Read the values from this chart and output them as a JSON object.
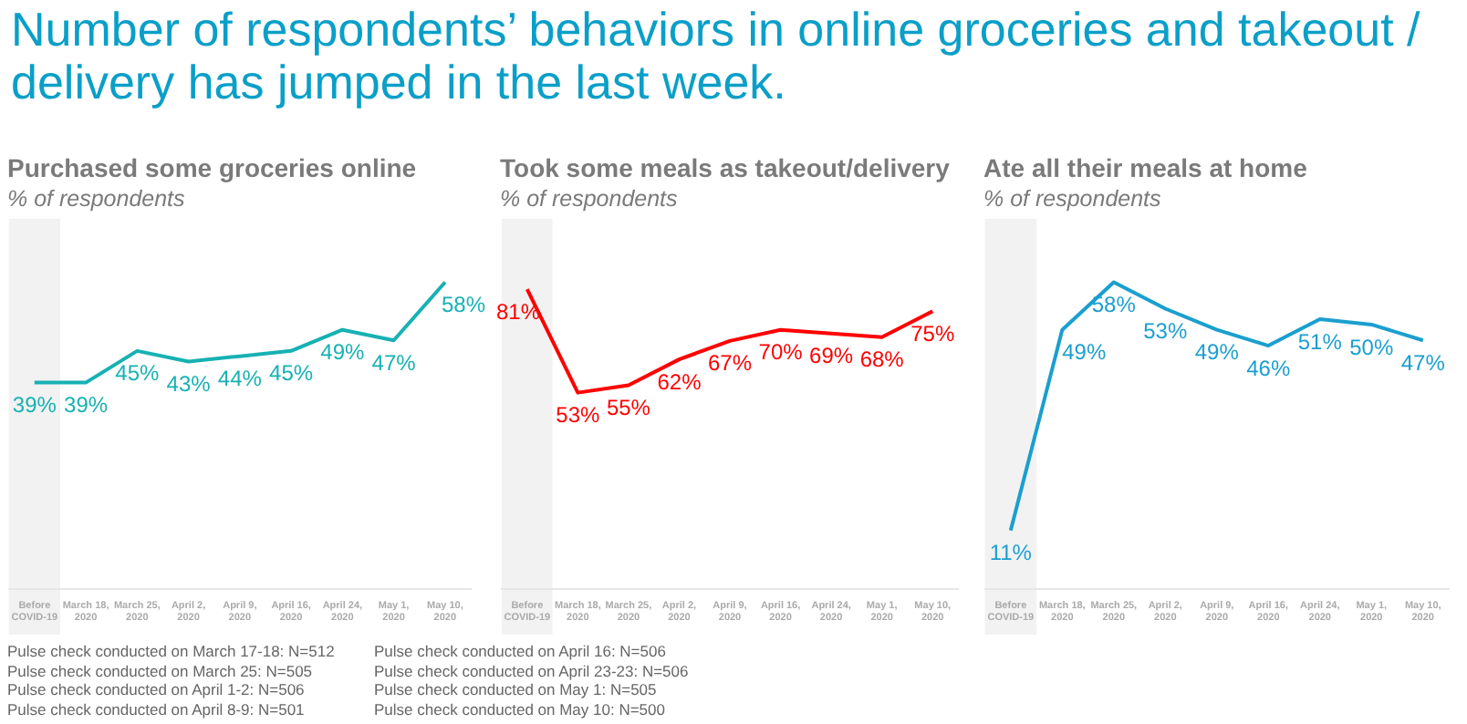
{
  "chart_data": [
    {
      "type": "line",
      "title": "Purchased some groceries online",
      "subtitle": "% of respondents",
      "annotations": [
        "Number of respondents’ behaviors in online groceries and takeout / delivery has jumped in the last week.",
        "Pulse check conducted on March 17-18: N=512",
        "Pulse check conducted on March 25: N=505",
        "Pulse check conducted on April 1-2: N=506",
        "Pulse check conducted on April 8-9: N=501"
      ],
      "categories": [
        "Before COVID-19",
        "March 18, 2020",
        "March 25, 2020",
        "April 2, 2020",
        "April 9, 2020",
        "April 16, 2020",
        "April 24, 2020",
        "May 1, 2020",
        "May 10, 2020"
      ],
      "series": [
        {
          "color": "#17b1b3",
          "values": [
            39,
            39,
            45,
            43,
            44,
            45,
            49,
            47,
            58
          ],
          "value_labels": [
            "39%",
            "39%",
            "45%",
            "43%",
            "44%",
            "45%",
            "49%",
            "47%",
            "58%"
          ]
        }
      ],
      "tick_labels": "x",
      "legend": false,
      "marker": "none",
      "bands": [
        {
          "axis": "x",
          "from": "Before COVID-19",
          "to": "Before COVID-19",
          "color": "#f2f2f2"
        }
      ]
    },
    {
      "type": "line",
      "title": "Took some meals as takeout/delivery",
      "subtitle": "% of respondents",
      "annotations": [
        "Pulse check conducted on April 16: N=506",
        "Pulse check conducted on April 23-23: N=506",
        "Pulse check conducted on May 1: N=505",
        "Pulse check conducted on May 10: N=500"
      ],
      "categories": [
        "Before COVID-19",
        "March 18, 2020",
        "March 25, 2020",
        "April 2, 2020",
        "April 9, 2020",
        "April 16, 2020",
        "April 24, 2020",
        "May 1, 2020",
        "May 10, 2020"
      ],
      "series": [
        {
          "color": "#ff0000",
          "values": [
            81,
            53,
            55,
            62,
            67,
            70,
            69,
            68,
            75
          ],
          "value_labels": [
            "81%",
            "53%",
            "55%",
            "62%",
            "67%",
            "70%",
            "69%",
            "68%",
            "75%"
          ]
        }
      ],
      "tick_labels": "x",
      "legend": false,
      "marker": "none",
      "bands": [
        {
          "axis": "x",
          "from": "Before COVID-19",
          "to": "Before COVID-19",
          "color": "#f2f2f2"
        }
      ]
    },
    {
      "type": "line",
      "title": "Ate all their meals at home",
      "subtitle": "% of respondents",
      "categories": [
        "Before COVID-19",
        "March 18, 2020",
        "March 25, 2020",
        "April 2, 2020",
        "April 9, 2020",
        "April 16, 2020",
        "April 24, 2020",
        "May 1, 2020",
        "May 10, 2020"
      ],
      "series": [
        {
          "color": "#1a9fcf",
          "values": [
            11,
            49,
            58,
            53,
            49,
            46,
            51,
            50,
            47
          ],
          "value_labels": [
            "11%",
            "49%",
            "58%",
            "53%",
            "49%",
            "46%",
            "51%",
            "50%",
            "47%"
          ]
        }
      ],
      "tick_labels": "x",
      "legend": false,
      "marker": "none",
      "bands": [
        {
          "axis": "x",
          "from": "Before COVID-19",
          "to": "Before COVID-19",
          "color": "#f2f2f2"
        }
      ]
    }
  ]
}
